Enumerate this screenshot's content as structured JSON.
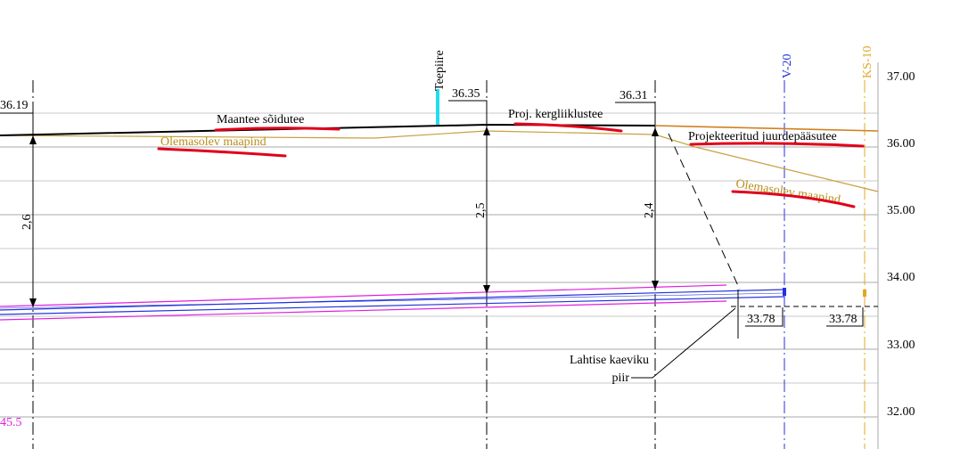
{
  "elevation_scale": [
    "37.00",
    "36.00",
    "35.00",
    "34.00",
    "33.00",
    "32.00"
  ],
  "levels": [
    "36.19",
    "36.35",
    "36.31",
    "33.78",
    "33.78"
  ],
  "depths": [
    "2,6",
    "2,5",
    "2,4"
  ],
  "labels": {
    "road": "Maantee sõidutee",
    "ground_left": "Olemasolev maapind",
    "bike_path": "Proj. kergliiklustee",
    "access_road": "Projekteeritud juurdepääsutee",
    "ground_right": "Olemasolev maapind",
    "trench": [
      "Lahtise kaeviku",
      "piir"
    ],
    "road_edge": "Teepiire",
    "well_1": "V-20",
    "well_2": "KS-10",
    "pipe_length": "45.5"
  }
}
